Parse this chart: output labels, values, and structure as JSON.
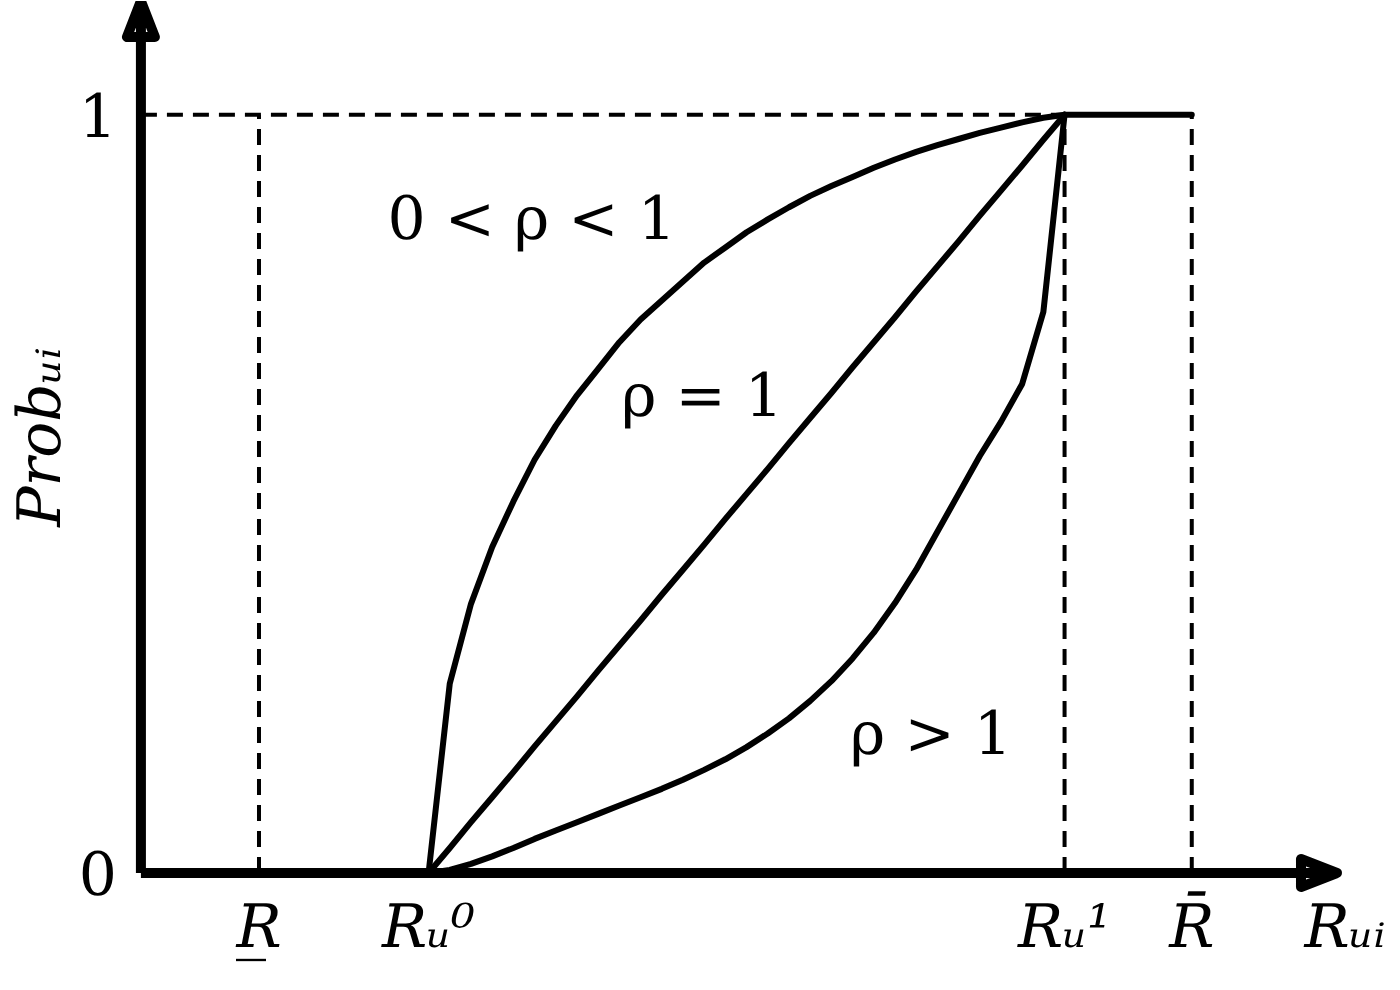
{
  "chart_data": {
    "type": "line",
    "xlabel": "Rᵤᵢ",
    "ylabel": "Probᵤᵢ",
    "categories": [
      "R̲",
      null,
      null,
      null,
      null,
      null,
      null,
      null,
      "Rᵤ⁰",
      null,
      null,
      null,
      null,
      null,
      null,
      null,
      null,
      null,
      null,
      null,
      null,
      null,
      null,
      null,
      null,
      null,
      null,
      null,
      null,
      null,
      null,
      null,
      null,
      null,
      null,
      null,
      null,
      null,
      "Rᵤ¹",
      null,
      null,
      null,
      null,
      null,
      "R̄"
    ],
    "ylim": [
      0,
      1.15
    ],
    "yticks": [
      0,
      1
    ],
    "ref_lines": [
      {
        "axis": "x",
        "value": "R̲",
        "color": "#000000",
        "line_style": "dashed"
      },
      {
        "axis": "x",
        "value": "Rᵤ¹",
        "color": "#000000",
        "line_style": "dashed"
      },
      {
        "axis": "x",
        "value": "R̄",
        "color": "#000000",
        "line_style": "dashed"
      },
      {
        "axis": "y",
        "value": 1,
        "color": "#000000",
        "line_style": "dashed"
      }
    ],
    "series": [
      {
        "name": "0 < ρ < 1",
        "color": "#000000",
        "values": [
          null,
          null,
          null,
          null,
          null,
          null,
          null,
          null,
          0,
          0.25,
          0.355,
          0.43,
          0.49,
          0.545,
          0.59,
          0.63,
          0.665,
          0.7,
          0.73,
          0.755,
          0.78,
          0.805,
          0.825,
          0.845,
          0.862,
          0.878,
          0.893,
          0.906,
          0.918,
          0.93,
          0.941,
          0.951,
          0.96,
          0.968,
          0.976,
          0.983,
          0.99,
          0.996,
          1,
          null,
          null,
          null,
          null,
          null,
          null
        ]
      },
      {
        "name": "ρ = 1",
        "color": "#000000",
        "values": [
          null,
          null,
          null,
          null,
          null,
          null,
          null,
          null,
          0,
          0.033,
          0.067,
          0.1,
          0.133,
          0.167,
          0.2,
          0.233,
          0.267,
          0.3,
          0.333,
          0.367,
          0.4,
          0.433,
          0.467,
          0.5,
          0.533,
          0.567,
          0.6,
          0.633,
          0.667,
          0.7,
          0.733,
          0.767,
          0.8,
          0.833,
          0.867,
          0.9,
          0.933,
          0.967,
          1,
          null,
          null,
          null,
          null,
          null,
          null
        ]
      },
      {
        "name": "ρ > 1",
        "color": "#000000",
        "values": [
          null,
          null,
          null,
          null,
          null,
          null,
          null,
          null,
          0,
          0.004,
          0.012,
          0.022,
          0.033,
          0.045,
          0.056,
          0.067,
          0.078,
          0.089,
          0.1,
          0.111,
          0.123,
          0.136,
          0.15,
          0.166,
          0.184,
          0.204,
          0.227,
          0.253,
          0.283,
          0.317,
          0.356,
          0.4,
          0.45,
          0.5,
          0.55,
          0.595,
          0.645,
          0.74,
          1,
          null,
          null,
          null,
          null,
          null,
          null
        ]
      },
      {
        "color": "#000000",
        "values": [
          0,
          0,
          0,
          0,
          0,
          0,
          0,
          0,
          0,
          null,
          null,
          null,
          null,
          null,
          null,
          null,
          null,
          null,
          null,
          null,
          null,
          null,
          null,
          null,
          null,
          null,
          null,
          null,
          null,
          null,
          null,
          null,
          null,
          null,
          null,
          null,
          null,
          null,
          1,
          1,
          1,
          1,
          1,
          1,
          1
        ]
      }
    ]
  }
}
